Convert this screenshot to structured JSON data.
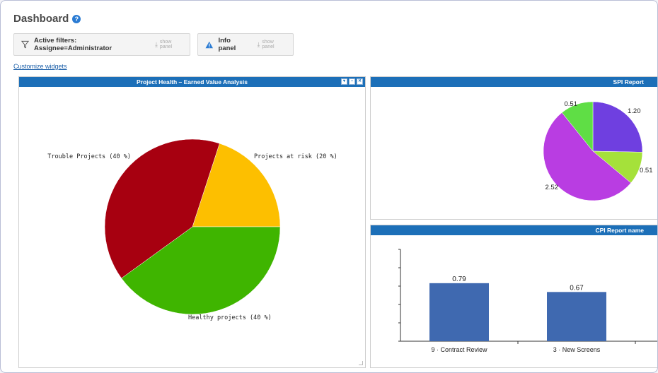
{
  "header": {
    "title": "Dashboard",
    "help_glyph": "?"
  },
  "filters": {
    "active_label": "Active filters: Assignee=Administrator",
    "active_show": "show panel",
    "info_label": "Info panel",
    "info_show": "show panel"
  },
  "customize_label": "Customize widgets",
  "widgets": {
    "health": {
      "title": "Project Health – Earned Value Analysis",
      "slices": [
        {
          "label": "Projects at risk (20 %)",
          "value": 20,
          "color": "#fdbf00"
        },
        {
          "label": "Healthy projects (40 %)",
          "value": 40,
          "color": "#3fb500"
        },
        {
          "label": "Trouble Projects (40 %)",
          "value": 40,
          "color": "#a70010"
        }
      ]
    },
    "spi": {
      "title": "SPI Report",
      "slices": [
        {
          "label": "1.20",
          "value": 1.2,
          "color": "#6f3fe0"
        },
        {
          "label": "0.51",
          "value": 0.51,
          "color": "#a5e13a"
        },
        {
          "label": "2.52",
          "value": 2.52,
          "color": "#b93de2"
        },
        {
          "label": "0.51",
          "value": 0.51,
          "color": "#5fde45"
        }
      ]
    },
    "cpi": {
      "title": "CPI Report name",
      "bars": [
        {
          "category": "9 · Contract Review",
          "value": 0.79,
          "label": "0.79"
        },
        {
          "category": "3 · New Screens",
          "value": 0.67,
          "label": "0.67"
        }
      ],
      "ymax": 1.25,
      "color": "#3f69b0"
    }
  }
}
